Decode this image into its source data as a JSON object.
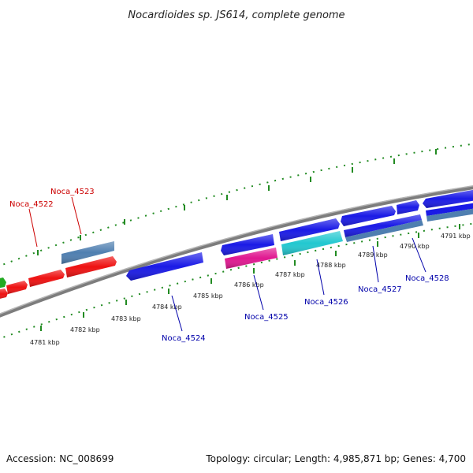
{
  "title": "Nocardioides sp. JS614, complete genome",
  "accession_text": "Accession: NC_008699",
  "summary_text": "Topology: circular; Length: 4,985,871 bp; Genes: 4,700",
  "colors": {
    "backbone": "#8a8a8a",
    "ticks": "#228b22",
    "plus_strand_label": "#cc0000",
    "minus_strand_label": "#0000aa",
    "gene_red": "#ee1111",
    "gene_blue": "#1a1ae6",
    "gene_steel": "#4f7fb0",
    "gene_cyan": "#22c8d0",
    "gene_magenta": "#e01890",
    "gene_green": "#22aa22"
  },
  "scale_labels": [
    "4781 kbp",
    "4782 kbp",
    "4783 kbp",
    "4784 kbp",
    "4785 kbp",
    "4786 kbp",
    "4787 kbp",
    "4788 kbp",
    "4789 kbp",
    "4790 kbp",
    "4791 kbp"
  ],
  "gene_labels": {
    "noca_4522": "Noca_4522",
    "noca_4523": "Noca_4523",
    "noca_4524": "Noca_4524",
    "noca_4525": "Noca_4525",
    "noca_4526": "Noca_4526",
    "noca_4527": "Noca_4527",
    "noca_4528": "Noca_4528"
  }
}
